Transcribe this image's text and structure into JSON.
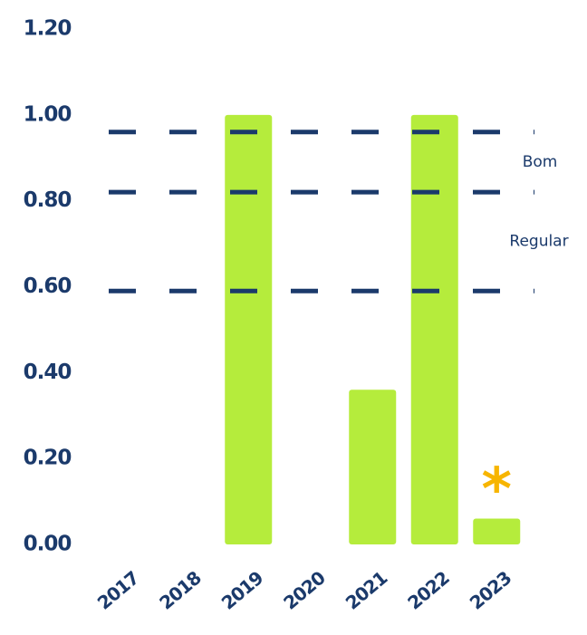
{
  "chart_data": {
    "type": "bar",
    "categories": [
      "2017",
      "2018",
      "2019",
      "2020",
      "2021",
      "2022",
      "2023"
    ],
    "values": [
      0,
      0,
      1.0,
      0,
      0.36,
      1.0,
      0.06
    ],
    "color": "#b5ec3c",
    "ylim": [
      0,
      1.2
    ],
    "yticks": [
      {
        "value": 0,
        "label": "0.00"
      },
      {
        "value": 0.2,
        "label": "0.20"
      },
      {
        "value": 0.4,
        "label": "0.40"
      },
      {
        "value": 0.6,
        "label": "0.60"
      },
      {
        "value": 0.8,
        "label": "0.80"
      },
      {
        "value": 1.0,
        "label": "1.00"
      },
      {
        "value": 1.2,
        "label": "1.20"
      }
    ],
    "reference_lines": [
      0.96,
      0.82,
      0.59
    ],
    "reference_line_color": "#1b3a6b",
    "annotations": [
      {
        "text": "Bom"
      },
      {
        "text": "Regular"
      },
      {
        "text": "*",
        "category": "2023"
      }
    ],
    "grid": false
  }
}
